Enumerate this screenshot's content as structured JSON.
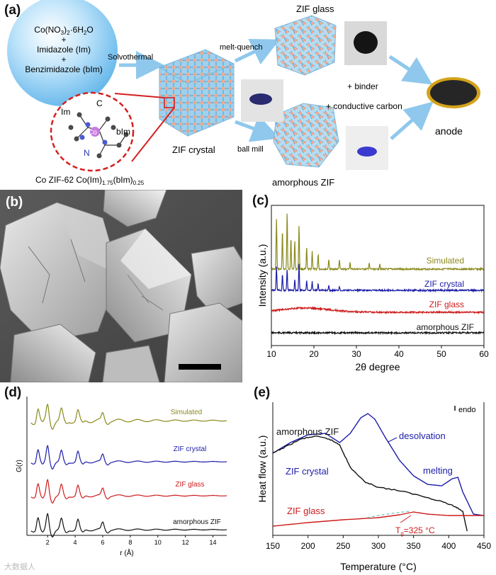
{
  "panel_labels": {
    "a": "(a)",
    "b": "(b)",
    "c": "(c)",
    "d": "(d)",
    "e": "(e)"
  },
  "schematic": {
    "reagents": {
      "line1_main": "Co(NO",
      "line1_sub1": "3",
      "line1_mid": ")",
      "line1_sub2": "2",
      "line1_end": "·6H",
      "line1_sub3": "2",
      "line1_tail": "O",
      "plus1": "+",
      "line2": "Imidazole (Im)",
      "plus2": "+",
      "line3": "Benzimidazole (bIm)"
    },
    "solvothermal": "Solvothermal",
    "zif_crystal": "ZIF crystal",
    "zif_glass": "ZIF glass",
    "melt_quench": "melt-quench",
    "ball_mill": "ball mill",
    "amorphous_zif": "amorphous ZIF",
    "binder": "+ binder",
    "conductive_carbon": "+ conductive carbon",
    "anode": "anode",
    "mol_im": "Im",
    "mol_c": "C",
    "mol_co": "Co",
    "mol_bim": "bIm",
    "mol_n": "N",
    "formula_a": "Co ZIF-62 Co(Im)",
    "formula_sub1": "1.75",
    "formula_b": "(bIm)",
    "formula_sub2": "0.25"
  },
  "watermark": "大数据人",
  "chart_data": [
    {
      "type": "line",
      "panel": "(c)",
      "xlabel": "2θ degree",
      "ylabel": "Intensity (a.u.)",
      "xlim": [
        10,
        60
      ],
      "xticks": [
        10,
        20,
        30,
        40,
        50,
        60
      ],
      "series": [
        {
          "name": "Simulated",
          "color": "#8a8a1e",
          "baseline": 380,
          "peaks": [
            [
              11.2,
              70
            ],
            [
              12.6,
              55
            ],
            [
              13.7,
              80
            ],
            [
              14.6,
              45
            ],
            [
              15.5,
              40
            ],
            [
              16.5,
              62
            ],
            [
              18.3,
              30
            ],
            [
              19.6,
              25
            ],
            [
              21.0,
              22
            ],
            [
              23.5,
              14
            ],
            [
              26.0,
              12
            ],
            [
              28.5,
              10
            ],
            [
              33.0,
              9
            ],
            [
              35.5,
              8
            ]
          ]
        },
        {
          "name": "ZIF crystal",
          "color": "#1c1ca8",
          "baseline": 410,
          "peaks": [
            [
              11.2,
              34
            ],
            [
              12.6,
              24
            ],
            [
              13.7,
              30
            ],
            [
              15.5,
              16
            ],
            [
              16.5,
              38
            ],
            [
              18.3,
              14
            ],
            [
              19.6,
              12
            ],
            [
              21.0,
              10
            ],
            [
              23.5,
              7
            ],
            [
              26.0,
              6
            ]
          ]
        },
        {
          "name": "ZIF glass",
          "color": "#cc1c1c",
          "baseline": 441
        },
        {
          "name": "amorphous ZIF",
          "color": "#111111",
          "baseline": 470
        }
      ]
    },
    {
      "type": "line",
      "panel": "(d)",
      "xlabel": "r (Å)",
      "ylabel": "G(r)",
      "xlim": [
        0.5,
        15
      ],
      "xticks": [
        2,
        4,
        6,
        8,
        10,
        12,
        14
      ],
      "peaks_r": [
        1.3,
        2.0,
        3.0,
        4.2,
        6.0
      ],
      "series": [
        {
          "name": "Simulated",
          "color": "#8a8a1e",
          "baseline": 594
        },
        {
          "name": "ZIF crystal",
          "color": "#1c1ca8",
          "baseline": 652
        },
        {
          "name": "ZIF glass",
          "color": "#cc1c1c",
          "baseline": 700
        },
        {
          "name": "amorphous ZIF",
          "color": "#111111",
          "baseline": 748
        }
      ]
    },
    {
      "type": "line",
      "panel": "(e)",
      "xlabel": "Temperature (°C)",
      "ylabel": "Heat flow (a.u.)",
      "xlim": [
        150,
        450
      ],
      "xticks": [
        150,
        200,
        250,
        300,
        350,
        400,
        450
      ],
      "annotations": {
        "desolvation": "desolvation",
        "melting": "melting",
        "endo": "endo",
        "tg_main": "T",
        "tg_sub": "g",
        "tg_value": "=325 °C"
      },
      "series": [
        {
          "name": "ZIF crystal",
          "color": "#1c1ca8",
          "points": [
            [
              150,
              640
            ],
            [
              175,
              625
            ],
            [
              200,
              614
            ],
            [
              225,
              612
            ],
            [
              245,
              625
            ],
            [
              260,
              612
            ],
            [
              275,
              590
            ],
            [
              285,
              584
            ],
            [
              295,
              592
            ],
            [
              310,
              618
            ],
            [
              330,
              650
            ],
            [
              350,
              672
            ],
            [
              370,
              684
            ],
            [
              390,
              686
            ],
            [
              405,
              676
            ],
            [
              413,
              674
            ],
            [
              420,
              695
            ],
            [
              435,
              726
            ],
            [
              450,
              728
            ]
          ]
        },
        {
          "name": "amorphous ZIF",
          "color": "#111111",
          "points": [
            [
              150,
              640
            ],
            [
              170,
              630
            ],
            [
              190,
              620
            ],
            [
              210,
              616
            ],
            [
              230,
              620
            ],
            [
              245,
              628
            ],
            [
              260,
              660
            ],
            [
              280,
              680
            ],
            [
              300,
              688
            ],
            [
              330,
              693
            ],
            [
              360,
              700
            ],
            [
              390,
              708
            ],
            [
              410,
              716
            ],
            [
              420,
              722
            ],
            [
              426,
              750
            ]
          ]
        },
        {
          "name": "ZIF glass",
          "color": "#cc1c1c",
          "points": [
            [
              150,
              743
            ],
            [
              200,
              738
            ],
            [
              250,
              734
            ],
            [
              300,
              731
            ],
            [
              330,
              727
            ],
            [
              350,
              723
            ],
            [
              370,
              726
            ],
            [
              400,
              728
            ],
            [
              450,
              728
            ]
          ]
        }
      ]
    }
  ]
}
